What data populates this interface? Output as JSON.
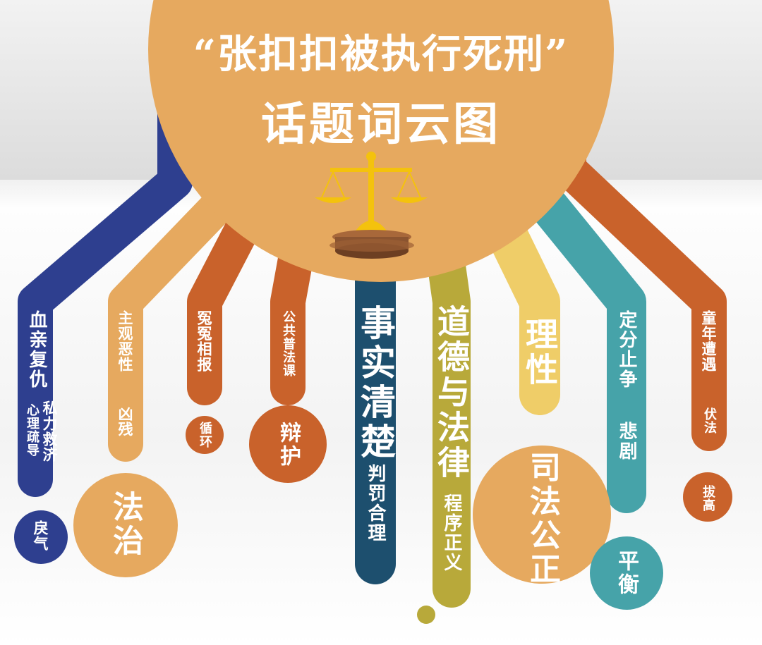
{
  "title": {
    "line1": "“张扣扣被执行死刑”",
    "line2": "话题词云图"
  },
  "colors": {
    "gold": "#e6a95f",
    "navy": "#2e3f8f",
    "orange": "#c9622b",
    "teal": "#46a3a9",
    "pale_yellow": "#efcd68",
    "dark_teal": "#1d4f6e",
    "olive": "#b8a93a",
    "wood": "#8b5430"
  },
  "words": {
    "xueqin_fuchou": "血亲复仇",
    "sili_jiuji": "私力救济",
    "xinli_shudao": "心理疏导",
    "liqi": "戾气",
    "zhuguan_exing": "主观恶性",
    "xiongcan": "凶残",
    "fazhi": "法治",
    "yuanyuan_xiangbao": "冤冤相报",
    "xunhuan": "循环",
    "gonggong_pufake": "公共普法课",
    "bianhu": "辩护",
    "shishi_qingchu": "事实清楚",
    "panfa_heli": "判罚合理",
    "daode_yu_falv": "道德与法律",
    "chengxu_zhengyi": "程序正义",
    "lixing": "理性",
    "sifa_gongzheng": "司法公正",
    "dingfen_zhizheng": "定分止争",
    "beiju": "悲剧",
    "pingheng": "平衡",
    "tongnian_zaoyu": "童年遭遇",
    "fufa": "伏法",
    "bagao": "拔高"
  }
}
